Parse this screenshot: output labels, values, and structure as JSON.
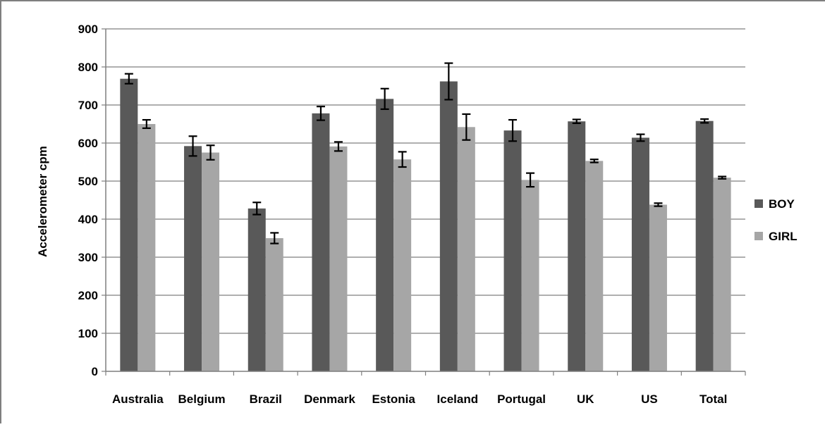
{
  "chart_data": {
    "type": "bar",
    "title": "",
    "xlabel": "",
    "ylabel": "Accelerometer cpm",
    "ylim": [
      0,
      900
    ],
    "yticks": [
      0,
      100,
      200,
      300,
      400,
      500,
      600,
      700,
      800,
      900
    ],
    "grid": true,
    "legend_position": "right",
    "categories": [
      "Australia",
      "Belgium",
      "Brazil",
      "Denmark",
      "Estonia",
      "Iceland",
      "Portugal",
      "UK",
      "US",
      "Total"
    ],
    "series": [
      {
        "name": "BOY",
        "color": "#595959",
        "values": [
          769,
          592,
          428,
          678,
          716,
          762,
          633,
          657,
          614,
          658
        ],
        "error": [
          13,
          26,
          16,
          18,
          27,
          48,
          28,
          5,
          9,
          5
        ]
      },
      {
        "name": "GIRL",
        "color": "#a6a6a6",
        "values": [
          650,
          575,
          350,
          591,
          557,
          642,
          503,
          553,
          438,
          509
        ],
        "error": [
          11,
          19,
          14,
          12,
          20,
          34,
          18,
          4,
          4,
          3
        ]
      }
    ],
    "colors": {
      "grid": "#7f7f7f",
      "axis": "#7f7f7f",
      "error_bar": "#000000"
    }
  }
}
